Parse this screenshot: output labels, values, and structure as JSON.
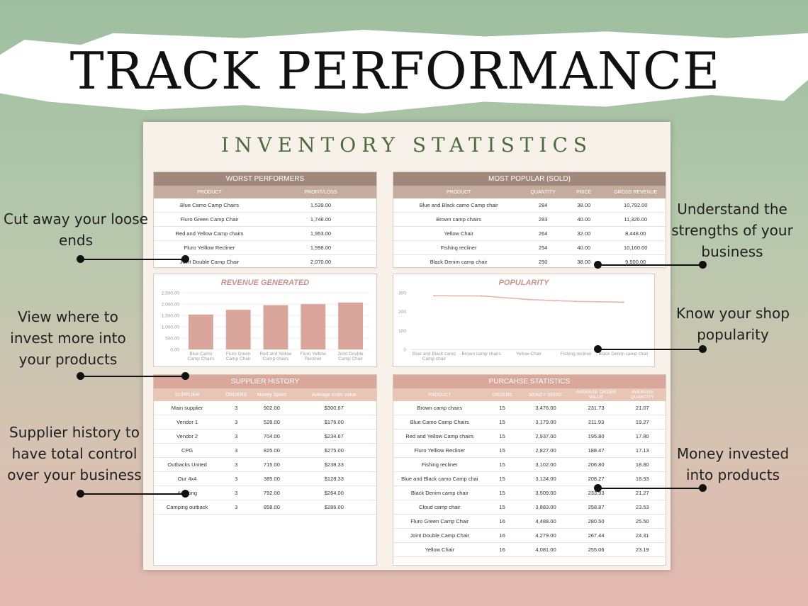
{
  "banner": {
    "title": "TRACK PERFORMANCE"
  },
  "sheet": {
    "title": "INVENTORY STATISTICS"
  },
  "worst": {
    "title": "WORST PERFORMERS",
    "columns": [
      "PRODUCT",
      "PROFIT/LOSS"
    ],
    "rows": [
      [
        "Blue Camo Camp Chairs",
        "1,539.00"
      ],
      [
        "Fluro Green Camp Chair",
        "1,746.00"
      ],
      [
        "Red and Yellow Camp chairs",
        "1,953.00"
      ],
      [
        "Fluro Yelllow Recliner",
        "1,998.00"
      ],
      [
        "Joint Double Camp Chair",
        "2,070.00"
      ]
    ]
  },
  "popular": {
    "title": "MOST POPULAR (SOLD)",
    "columns": [
      "PRODUCT",
      "QUANTITY",
      "PRICE",
      "GROSS REVENUE"
    ],
    "rows": [
      [
        "Blue and Black camo Camp chair",
        "284",
        "38.00",
        "10,792.00"
      ],
      [
        "Brown camp chairs",
        "283",
        "40.00",
        "11,320.00"
      ],
      [
        "Yellow Chair",
        "264",
        "32.00",
        "8,448.00"
      ],
      [
        "Fishing recliner",
        "254",
        "40.00",
        "10,160.00"
      ],
      [
        "Black Denim camp chair",
        "250",
        "38.00",
        "9,500.00"
      ]
    ]
  },
  "chart_data": [
    {
      "type": "bar",
      "title": "REVENUE GENERATED",
      "categories": [
        "Blue Camo Camp Chairs",
        "Fluro Green Camp Chair",
        "Red and Yellow Camp chairs",
        "Fluro Yelllow Recliner",
        "Joint Double Camp Chair"
      ],
      "values": [
        1539,
        1746,
        1953,
        1998,
        2070
      ],
      "ylim": [
        0,
        2500
      ],
      "yticks": [
        "0.00",
        "500.00",
        "1,000.00",
        "1,500.00",
        "2,000.00",
        "2,500.00"
      ],
      "color": "#d9a59a"
    },
    {
      "type": "line",
      "title": "POPULARITY",
      "categories": [
        "Blue and Black camo Camp chair",
        "Brown camp chairs",
        "Yellow Chair",
        "Fishing recliner",
        "Black Denim camp chair"
      ],
      "values": [
        284,
        283,
        264,
        254,
        250
      ],
      "ylim": [
        0,
        300
      ],
      "yticks": [
        "0",
        "100",
        "200",
        "300"
      ],
      "color": "#e2b3a7"
    }
  ],
  "supplier": {
    "title": "SUPPLIER HISTORY",
    "columns": [
      "SUPPLIER",
      "ORDERS",
      "Money Spent",
      "Average order value"
    ],
    "rows": [
      [
        "Main supplier",
        "3",
        "902.00",
        "$300.67"
      ],
      [
        "Vendor 1",
        "3",
        "528.00",
        "$176.00"
      ],
      [
        "Vendor 2",
        "3",
        "704.00",
        "$234.67"
      ],
      [
        "CPG",
        "3",
        "825.00",
        "$275.00"
      ],
      [
        "Outbacks United",
        "3",
        "715.00",
        "$238.33"
      ],
      [
        "Our 4x4",
        "3",
        "385.00",
        "$128.33"
      ],
      [
        "4x4 king",
        "3",
        "792.00",
        "$264.00"
      ],
      [
        "Camping outback",
        "3",
        "858.00",
        "$286.00"
      ]
    ]
  },
  "purchase": {
    "title": "PURCAHSE STATISTICS",
    "columns": [
      "PRODUCT",
      "ORDERS",
      "MONEY SPENT",
      "AVERAGE ORDER VALUE",
      "AVERAGE QUANTITY"
    ],
    "rows": [
      [
        "Brown camp chairs",
        "15",
        "3,476.00",
        "231.73",
        "21.07"
      ],
      [
        "Blue Camo Camp Chairs",
        "15",
        "3,179.00",
        "211.93",
        "19.27"
      ],
      [
        "Red and Yellow Camp chairs",
        "15",
        "2,937.00",
        "195.80",
        "17.80"
      ],
      [
        "Fluro Yelllow Recliner",
        "15",
        "2,827.00",
        "188.47",
        "17.13"
      ],
      [
        "Fishing recliner",
        "15",
        "3,102.00",
        "206.80",
        "18.80"
      ],
      [
        "Blue and Black camo Camp chai",
        "15",
        "3,124.00",
        "208.27",
        "18.93"
      ],
      [
        "Black Denim camp chair",
        "15",
        "3,509.00",
        "233.93",
        "21.27"
      ],
      [
        "Cloud camp chair",
        "15",
        "3,883.00",
        "258.87",
        "23.53"
      ],
      [
        "Fluro Green Camp Chair",
        "16",
        "4,488.00",
        "280.50",
        "25.50"
      ],
      [
        "Joint Double Camp Chair",
        "16",
        "4,279.00",
        "267.44",
        "24.31"
      ],
      [
        "Yellow Chair",
        "16",
        "4,081.00",
        "255.06",
        "23.19"
      ]
    ]
  },
  "callouts": {
    "loose_ends": "Cut away your loose ends",
    "strengths": "Understand the strengths of your business",
    "invest": "View where to invest more into your products",
    "popularity": "Know your shop popularity",
    "supplier": "Supplier history to have total control over your business",
    "money": "Money invested into products"
  }
}
